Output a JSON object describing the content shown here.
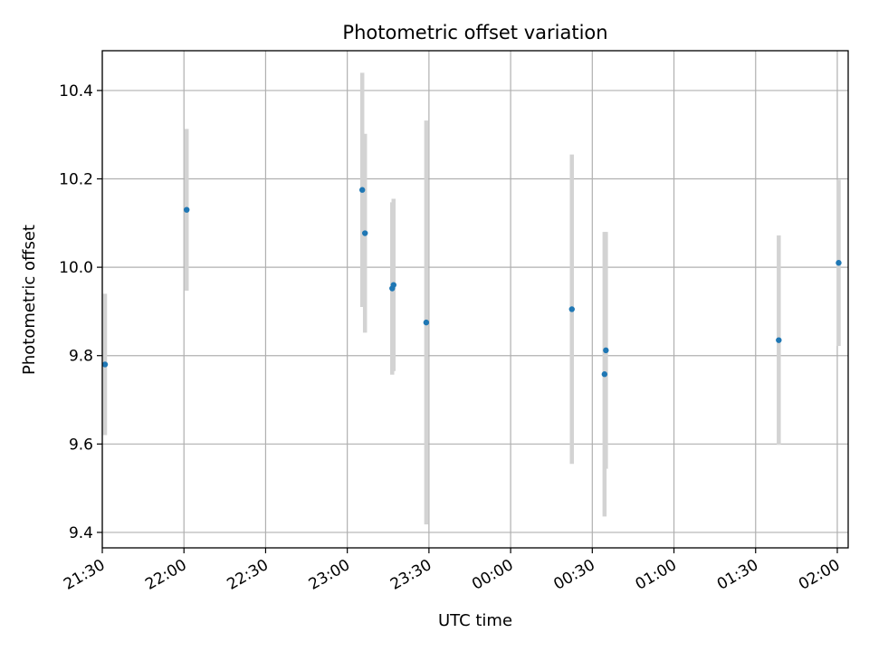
{
  "chart_data": {
    "type": "scatter",
    "title": "Photometric offset variation",
    "xlabel": "UTC time",
    "ylabel": "Photometric offset",
    "grid": true,
    "xlim": [
      1290,
      1564
    ],
    "ylim": [
      9.365,
      10.49
    ],
    "x_ticks": [
      {
        "t": 1290,
        "label": "21:30"
      },
      {
        "t": 1320,
        "label": "22:00"
      },
      {
        "t": 1350,
        "label": "22:30"
      },
      {
        "t": 1380,
        "label": "23:00"
      },
      {
        "t": 1410,
        "label": "23:30"
      },
      {
        "t": 1440,
        "label": "00:00"
      },
      {
        "t": 1470,
        "label": "00:30"
      },
      {
        "t": 1500,
        "label": "01:00"
      },
      {
        "t": 1530,
        "label": "01:30"
      },
      {
        "t": 1560,
        "label": "02:00"
      }
    ],
    "y_ticks": [
      9.4,
      9.6,
      9.8,
      10.0,
      10.2,
      10.4
    ],
    "y_tick_labels": [
      "9.4",
      "9.6",
      "9.8",
      "10.0",
      "10.2",
      "10.4"
    ],
    "colors": {
      "point": "#1f77b4",
      "errorbar": "#d3d3d3",
      "grid": "#b0b0b0"
    },
    "points": [
      {
        "t": 1291.0,
        "y": 9.78,
        "err": 0.16
      },
      {
        "t": 1321.0,
        "y": 10.13,
        "err": 0.183
      },
      {
        "t": 1385.5,
        "y": 10.175,
        "err": 0.265
      },
      {
        "t": 1386.5,
        "y": 10.077,
        "err": 0.225
      },
      {
        "t": 1396.5,
        "y": 9.952,
        "err": 0.195
      },
      {
        "t": 1397.0,
        "y": 9.96,
        "err": 0.195
      },
      {
        "t": 1409.0,
        "y": 9.875,
        "err": 0.457
      },
      {
        "t": 1462.5,
        "y": 9.905,
        "err": 0.35
      },
      {
        "t": 1474.5,
        "y": 9.758,
        "err": 0.322
      },
      {
        "t": 1475.0,
        "y": 9.812,
        "err": 0.268
      },
      {
        "t": 1538.5,
        "y": 9.835,
        "err": 0.237
      },
      {
        "t": 1560.5,
        "y": 10.01,
        "err": 0.188
      }
    ]
  }
}
